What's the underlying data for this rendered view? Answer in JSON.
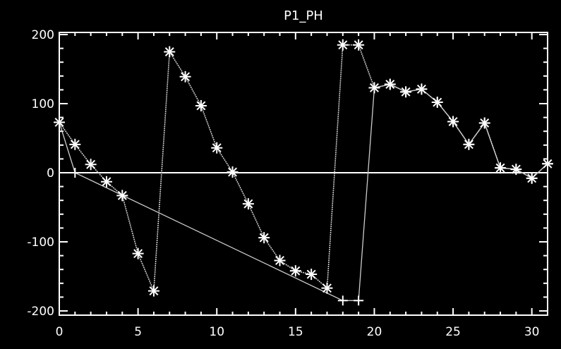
{
  "chart_data": {
    "type": "line",
    "title": "P1_PH",
    "xlabel": "",
    "ylabel": "",
    "xlim": [
      0,
      31
    ],
    "ylim": [
      -210,
      210
    ],
    "grid": false,
    "legend": "none",
    "x_ticks": [
      {
        "value": 0,
        "label": "0"
      },
      {
        "value": 5,
        "label": "5"
      },
      {
        "value": 10,
        "label": "10"
      },
      {
        "value": 15,
        "label": "15"
      },
      {
        "value": 20,
        "label": "20"
      },
      {
        "value": 25,
        "label": "25"
      },
      {
        "value": 30,
        "label": "30"
      }
    ],
    "y_ticks": [
      {
        "value": 200,
        "label": "200"
      },
      {
        "value": 100,
        "label": "100"
      },
      {
        "value": 0,
        "label": "0"
      },
      {
        "value": -100,
        "label": "-100"
      },
      {
        "value": -200,
        "label": "-200"
      }
    ],
    "colors": {
      "background": "#000000",
      "foreground": "#ffffff",
      "line": "#cccccc"
    },
    "series": [
      {
        "marker": "asterisk",
        "x": [
          0,
          1,
          2,
          3,
          4,
          5,
          6,
          7,
          8,
          9,
          10,
          11,
          12,
          13,
          14,
          15,
          16,
          17,
          18,
          19,
          20,
          21,
          22,
          23,
          24,
          25,
          26,
          27,
          28,
          29,
          30,
          31
        ],
        "y": [
          73,
          41,
          12,
          -13,
          -33,
          -117,
          -171,
          175,
          139,
          97,
          36,
          1,
          -45,
          -94,
          -127,
          -142,
          -147,
          -167,
          185,
          185,
          123,
          128,
          117,
          121,
          102,
          74,
          41,
          72,
          7,
          5,
          -8,
          13
        ]
      },
      {
        "marker": "plus",
        "x": [
          0,
          1,
          18,
          19,
          20,
          21,
          22,
          23,
          24,
          25,
          26,
          27,
          28,
          29,
          30,
          31
        ],
        "y": [
          73,
          0,
          -185,
          -185,
          123,
          128,
          117,
          121,
          102,
          74,
          41,
          72,
          7,
          5,
          -8,
          13
        ]
      }
    ]
  }
}
